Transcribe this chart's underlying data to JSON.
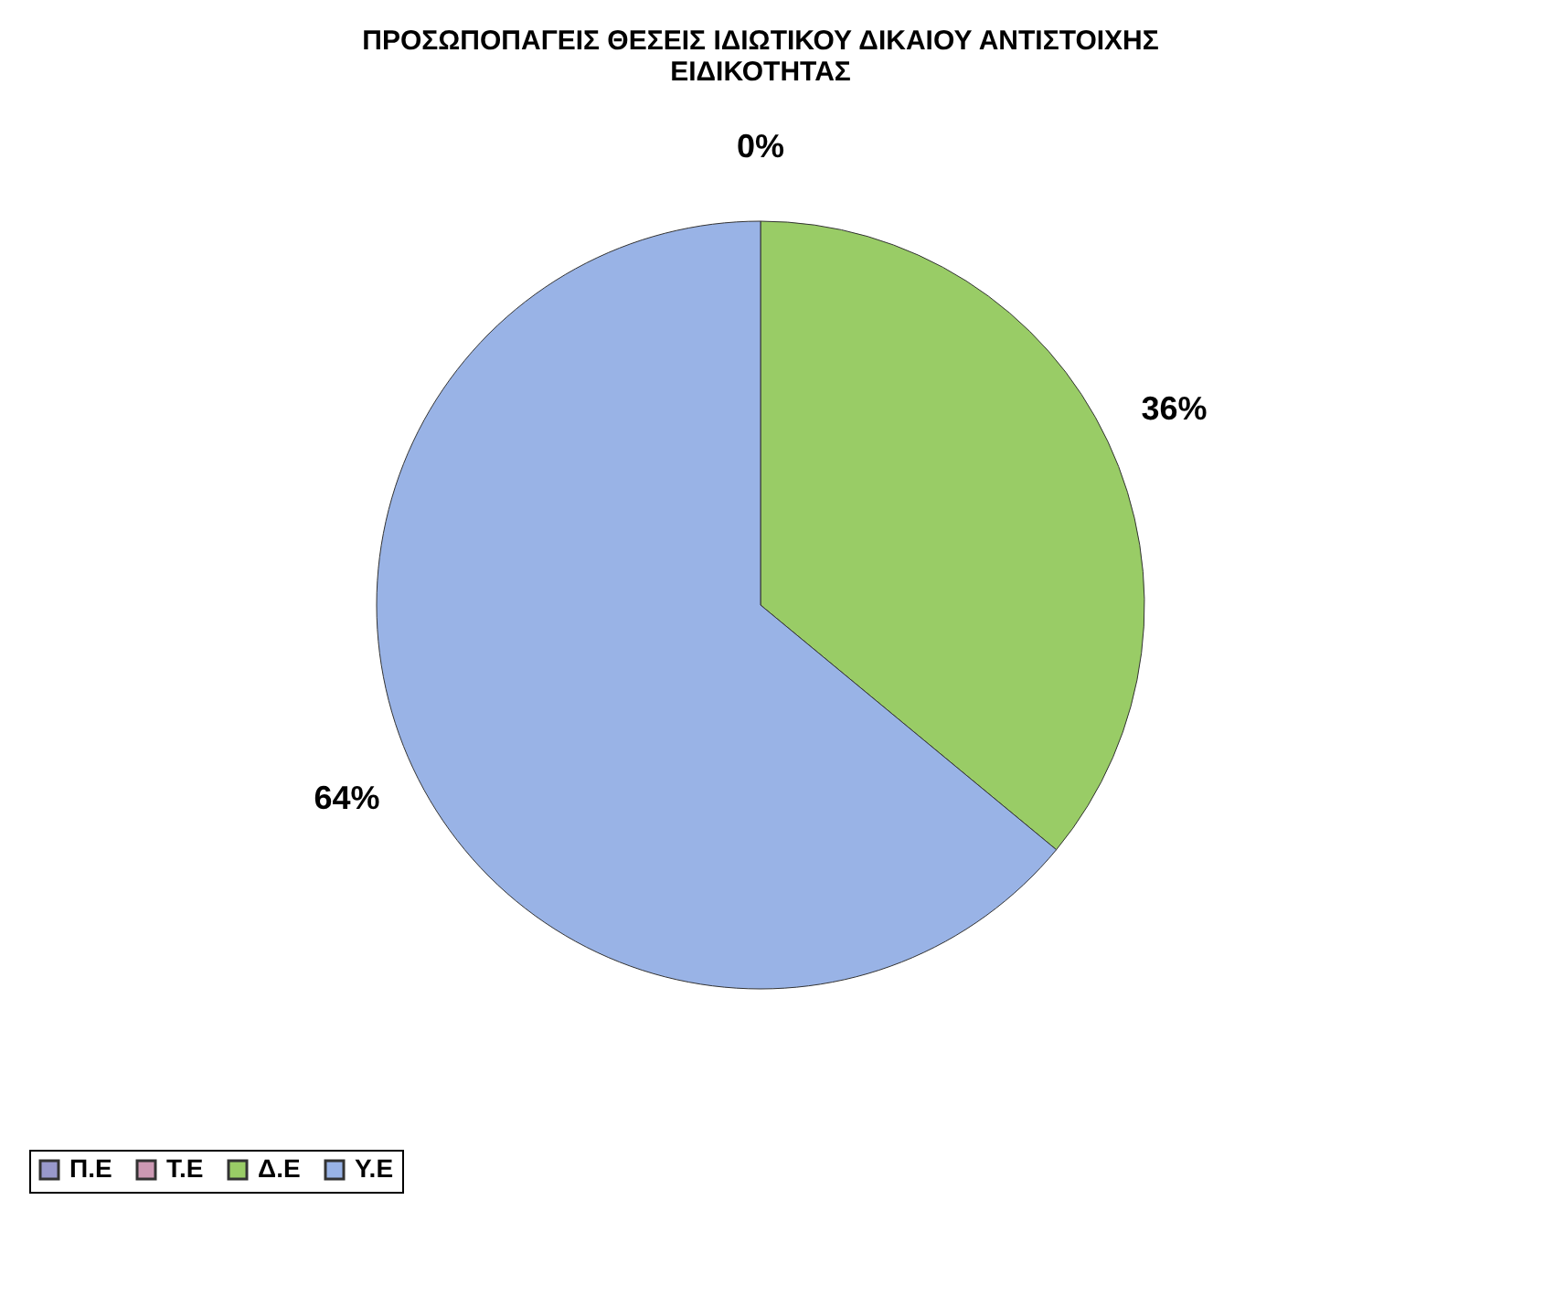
{
  "chart_data": {
    "type": "pie",
    "title": [
      "ΠΡΟΣΩΠΟΠΑΓΕΙΣ ΘΕΣΕΙΣ ΙΔΙΩΤΙΚΟΥ ΔΙΚΑΙΟΥ ΑΝΤΙΣΤΟΙΧΗΣ",
      "ΕΙΔΙΚΟΤΗΤΑΣ"
    ],
    "categories": [
      "Π.Ε",
      "Τ.Ε",
      "Δ.Ε",
      "Υ.Ε"
    ],
    "values": [
      0,
      0,
      36,
      64
    ],
    "colors": [
      "#9999cc",
      "#cc99b3",
      "#99cc66",
      "#99b3e6"
    ],
    "value_labels": [
      "0%",
      null,
      "36%",
      "64%"
    ],
    "legend": "bottom"
  }
}
